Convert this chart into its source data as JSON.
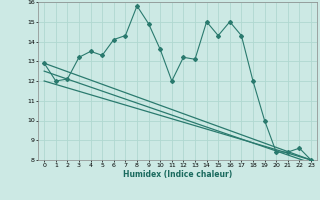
{
  "xlabel": "Humidex (Indice chaleur)",
  "xlim": [
    -0.5,
    23.5
  ],
  "ylim": [
    8,
    16
  ],
  "yticks": [
    8,
    9,
    10,
    11,
    12,
    13,
    14,
    15,
    16
  ],
  "xticks": [
    0,
    1,
    2,
    3,
    4,
    5,
    6,
    7,
    8,
    9,
    10,
    11,
    12,
    13,
    14,
    15,
    16,
    17,
    18,
    19,
    20,
    21,
    22,
    23
  ],
  "bg_color": "#cce9e4",
  "line_color": "#2a7a6e",
  "grid_color": "#b0d8d0",
  "series": [
    {
      "x": [
        0,
        1,
        2,
        3,
        4,
        5,
        6,
        7,
        8,
        9,
        10,
        11,
        12,
        13,
        14,
        15,
        16,
        17,
        18,
        19,
        20,
        21,
        22,
        23
      ],
      "y": [
        12.9,
        12.0,
        12.1,
        13.2,
        13.5,
        13.3,
        14.1,
        14.3,
        15.8,
        14.9,
        13.6,
        12.0,
        13.2,
        13.1,
        15.0,
        14.3,
        15.0,
        14.3,
        12.0,
        10.0,
        8.4,
        8.4,
        8.6,
        8.0
      ],
      "with_markers": true
    },
    {
      "x": [
        0,
        23
      ],
      "y": [
        12.9,
        8.0
      ],
      "with_markers": false
    },
    {
      "x": [
        0,
        23
      ],
      "y": [
        12.0,
        8.0
      ],
      "with_markers": false
    },
    {
      "x": [
        0,
        23
      ],
      "y": [
        12.5,
        7.85
      ],
      "with_markers": false
    }
  ]
}
